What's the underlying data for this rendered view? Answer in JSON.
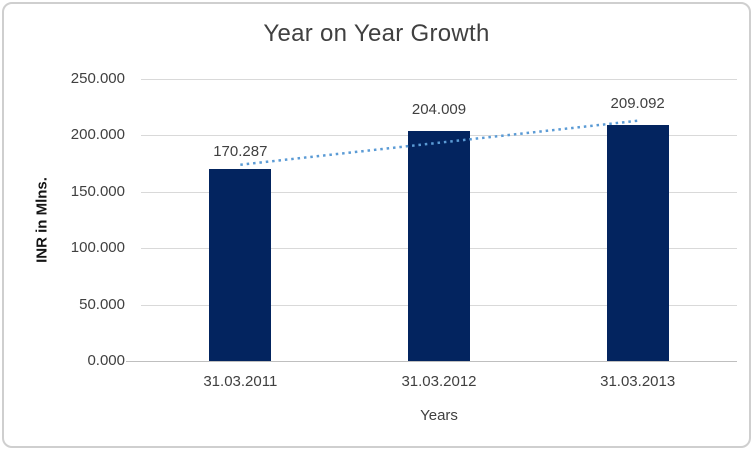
{
  "chart_data": {
    "type": "bar",
    "title": "Year on Year Growth",
    "xlabel": "Years",
    "ylabel": "INR in Mlns.",
    "categories": [
      "31.03.2011",
      "31.03.2012",
      "31.03.2013"
    ],
    "values": [
      170.287,
      204.009,
      209.092
    ],
    "value_labels": [
      "170.287",
      "204.009",
      "209.092"
    ],
    "ylim": [
      0,
      250
    ],
    "yticks": [
      0,
      50,
      100,
      150,
      200,
      250
    ],
    "ytick_labels": [
      "0.000",
      "50.000",
      "100.000",
      "150.000",
      "200.000",
      "250.000"
    ],
    "grid": "horizontal",
    "legend": "none",
    "trendline": {
      "style": "dotted",
      "start_value": 174.0,
      "end_value": 213.0
    },
    "colors": {
      "bar": "#03245f",
      "trendline": "#5b9bd5",
      "gridline": "#d9d9d9",
      "axis_line": "#bfbfbf",
      "text": "#404040",
      "frame_border": "#cfcfcf",
      "background": "#ffffff"
    }
  }
}
